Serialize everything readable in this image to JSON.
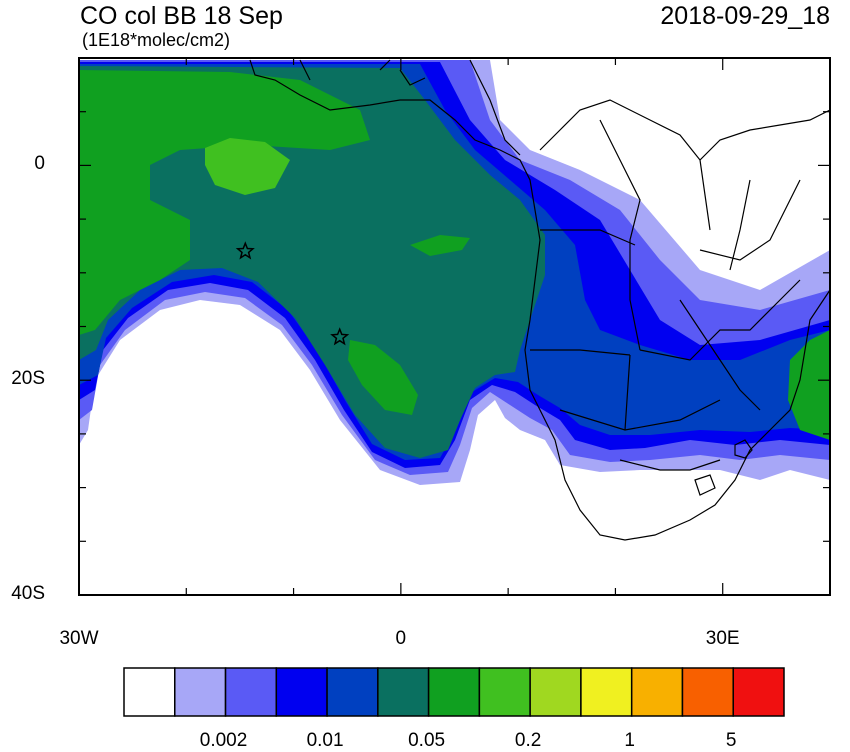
{
  "title": {
    "left": "CO col BB 18 Sep",
    "units": "(1E18*molec/cm2)",
    "right": "2018-09-29_18"
  },
  "map": {
    "lon_range": [
      -30,
      40
    ],
    "lat_range": [
      -40,
      10
    ],
    "x_tick_labels": [
      {
        "lon": -30,
        "label": "30W"
      },
      {
        "lon": 0,
        "label": "0"
      },
      {
        "lon": 30,
        "label": "30E"
      }
    ],
    "y_tick_labels": [
      {
        "lat": 0,
        "label": "0"
      },
      {
        "lat": -20,
        "label": "20S"
      },
      {
        "lat": -40,
        "label": "40S"
      }
    ],
    "markers": [
      {
        "name": "star-marker-1",
        "lon": -14.5,
        "lat": -8
      },
      {
        "name": "star-marker-2",
        "lon": -5.7,
        "lat": -16
      }
    ]
  },
  "colorbar": {
    "colors": [
      "#ffffff",
      "#a7a7f7",
      "#5a5af5",
      "#0000f0",
      "#0040c0",
      "#0a7060",
      "#10a020",
      "#40c020",
      "#a0d820",
      "#f0f020",
      "#f8b000",
      "#f86000",
      "#f01010"
    ],
    "labels": [
      {
        "after_box": 2,
        "text": "0.002"
      },
      {
        "after_box": 4,
        "text": "0.01"
      },
      {
        "after_box": 6,
        "text": "0.05"
      },
      {
        "after_box": 8,
        "text": "0.2"
      },
      {
        "after_box": 10,
        "text": "1"
      },
      {
        "after_box": 12,
        "text": "5"
      }
    ]
  }
}
